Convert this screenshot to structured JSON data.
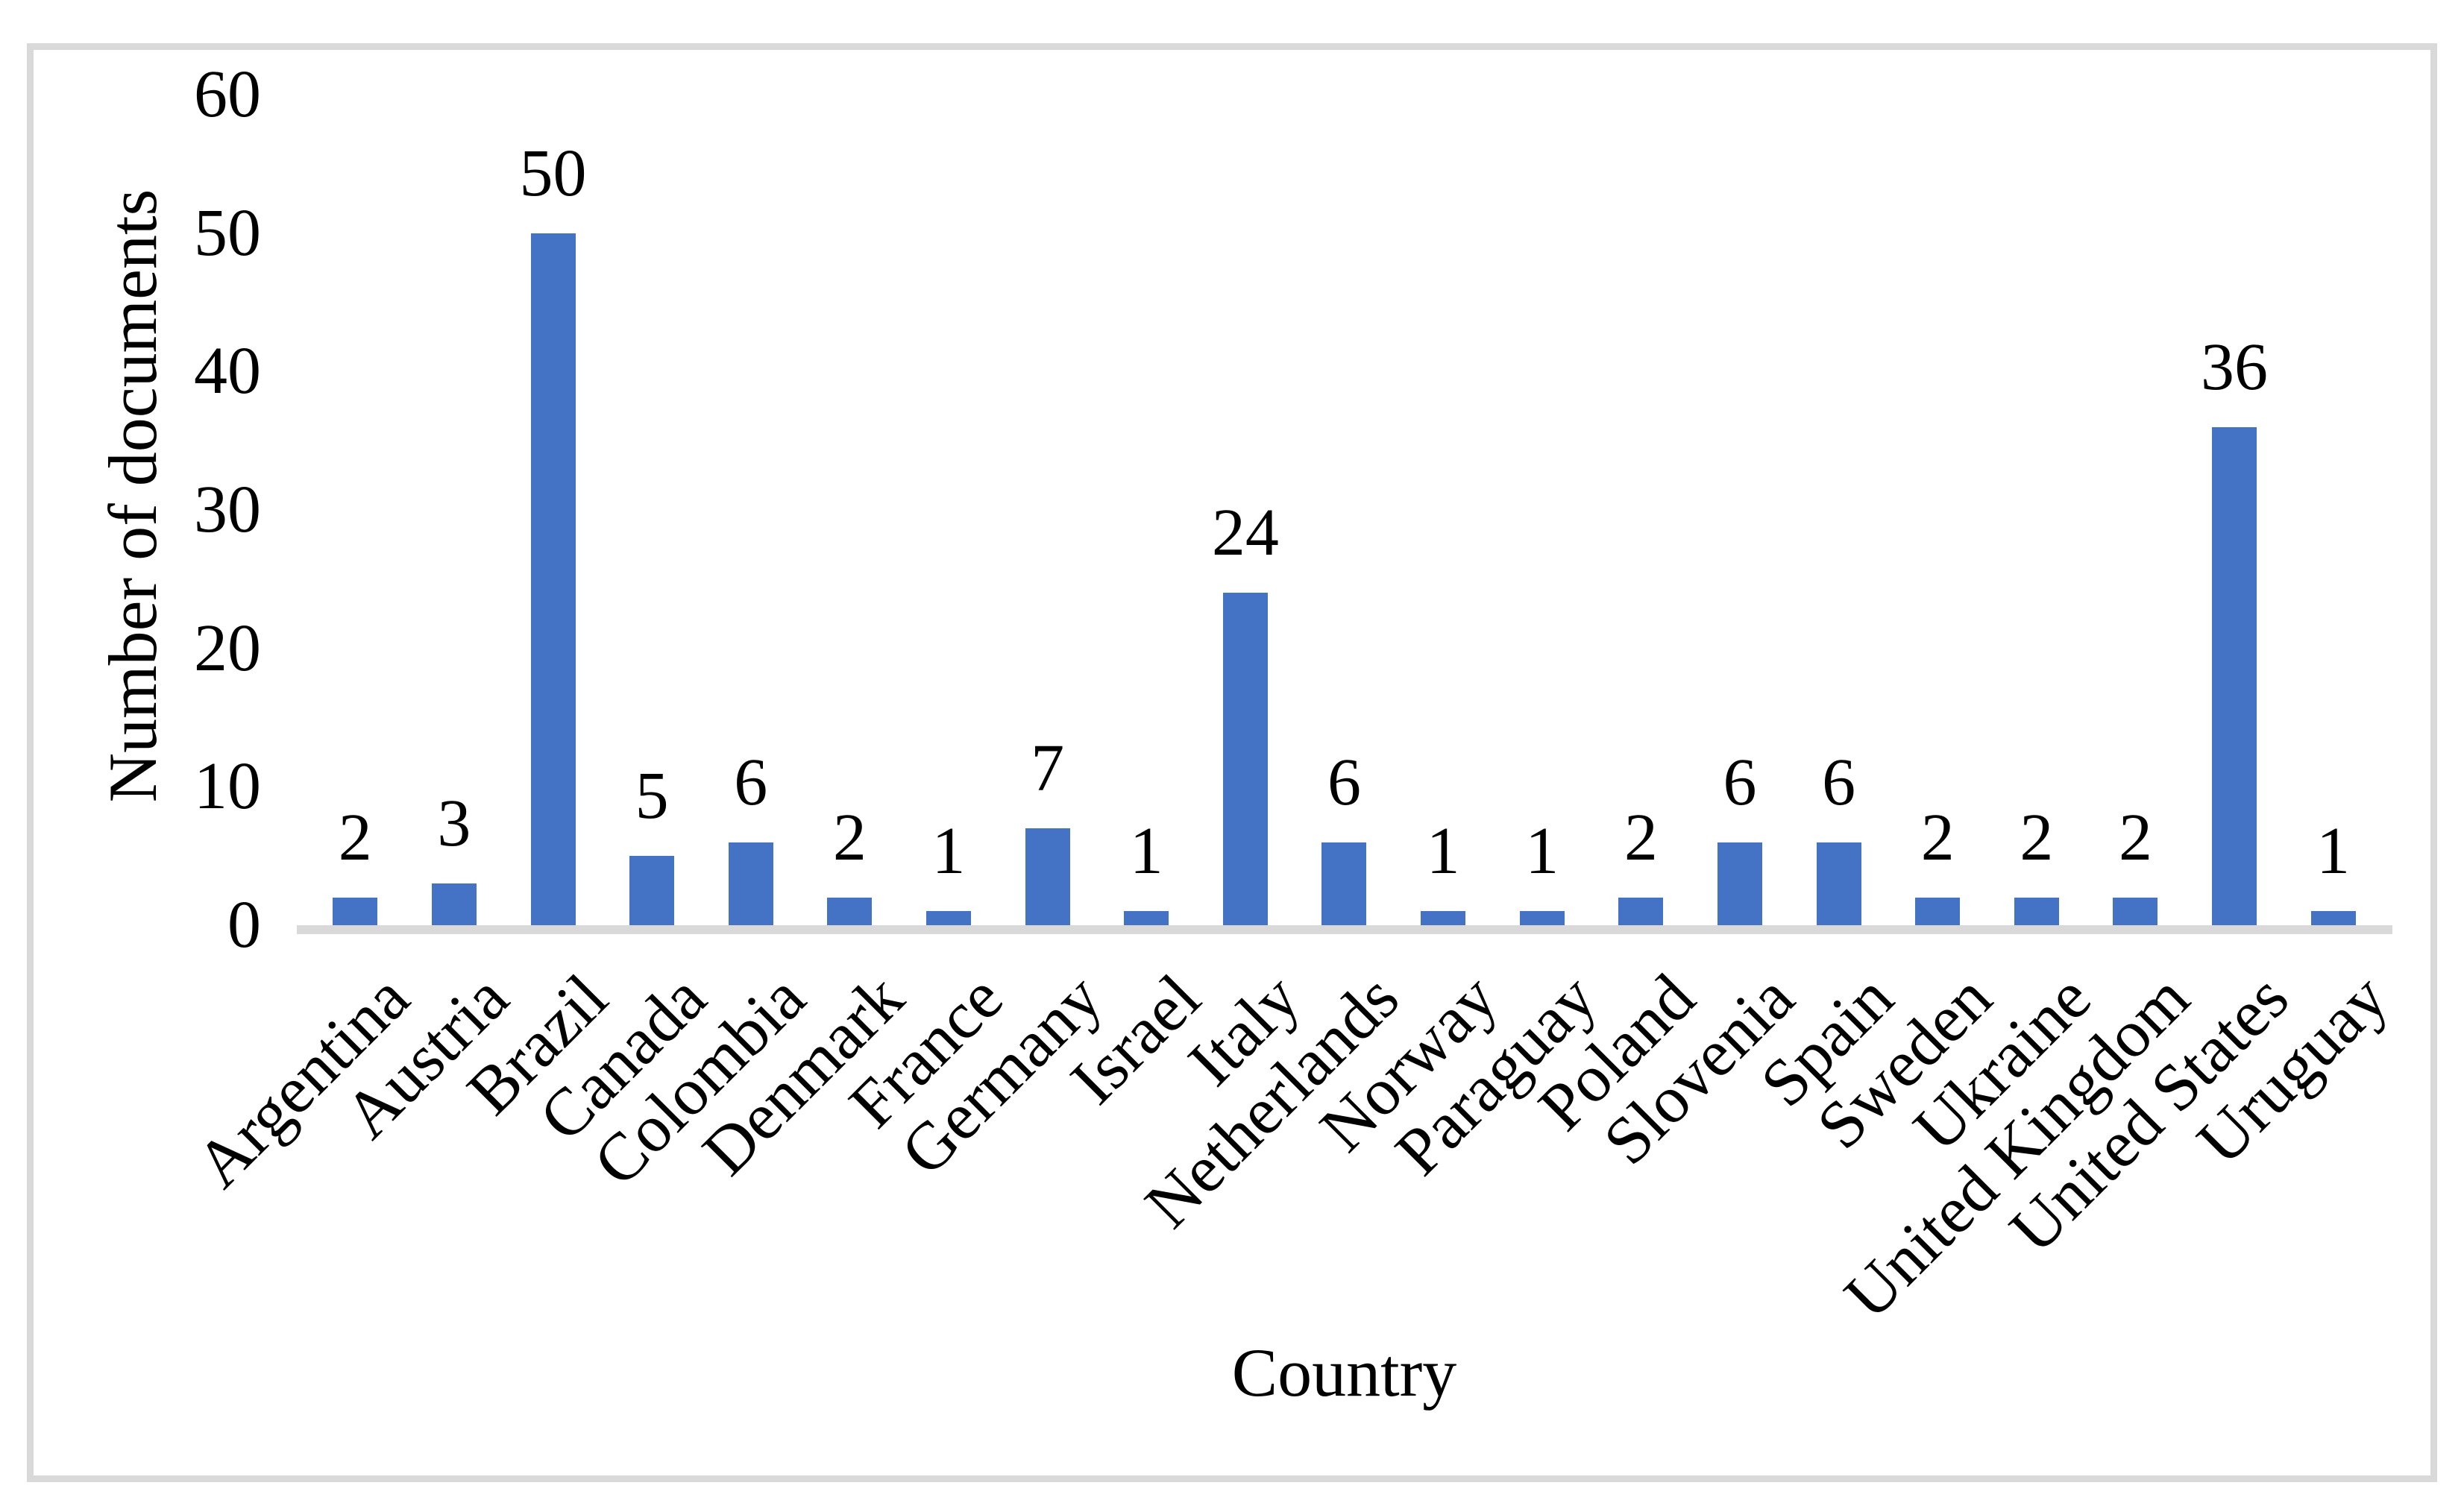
{
  "chart_data": {
    "type": "bar",
    "title": "",
    "xlabel": "Country",
    "ylabel": "Number of documents",
    "categories": [
      "Argentina",
      "Austria",
      "Brazil",
      "Canada",
      "Colombia",
      "Denmark",
      "France",
      "Germany",
      "Israel",
      "Italy",
      "Netherlands",
      "Norway",
      "Paraguay",
      "Poland",
      "Slovenia",
      "Spain",
      "Sweden",
      "Ukraine",
      "United Kingdom",
      "United States",
      "Uruguay"
    ],
    "values": [
      2,
      3,
      50,
      5,
      6,
      2,
      1,
      7,
      1,
      24,
      6,
      1,
      1,
      2,
      6,
      6,
      2,
      2,
      2,
      36,
      1
    ],
    "data_labels": [
      2,
      3,
      50,
      5,
      6,
      2,
      1,
      7,
      1,
      24,
      6,
      1,
      1,
      2,
      6,
      6,
      2,
      2,
      2,
      36,
      1
    ],
    "ylim": [
      0,
      60
    ],
    "yticks": [
      0,
      10,
      20,
      30,
      40,
      50,
      60
    ],
    "grid": false,
    "legend": false,
    "x_tick_rotation_deg": 45,
    "colors": {
      "bar": "#4472C4",
      "axis_line": "#d9d9d9",
      "frame_border": "#d9d9d9",
      "text": "#000000",
      "background": "#ffffff"
    }
  }
}
